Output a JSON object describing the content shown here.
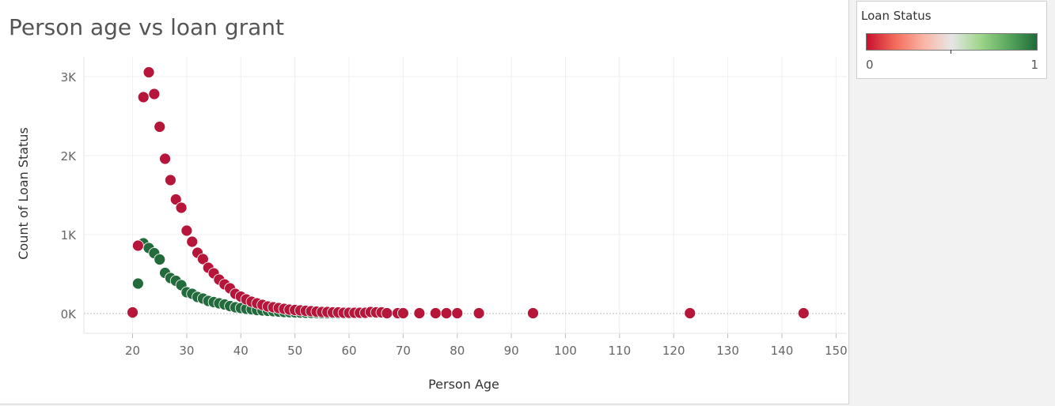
{
  "colors": {
    "denied": "#b5163a",
    "granted": "#236b3c",
    "gridline": "#efefef",
    "zero_line": "#bbbbbb"
  },
  "legend": {
    "title": "Loan Status",
    "min_label": "0",
    "max_label": "1",
    "gradient": [
      "#c8102e",
      "#f26b5b",
      "#fbb4a4",
      "#e6e6e6",
      "#9ed68a",
      "#5aa85f",
      "#1f6b3a"
    ]
  },
  "chart_data": {
    "type": "scatter",
    "title": "Person age vs loan grant",
    "xlabel": "Person Age",
    "ylabel": "Count of Loan Status",
    "xlim": [
      11,
      152
    ],
    "ylim": [
      -250,
      3250
    ],
    "x_ticks": [
      20,
      30,
      40,
      50,
      60,
      70,
      80,
      90,
      100,
      110,
      120,
      130,
      140,
      150
    ],
    "y_ticks": [
      {
        "value": 0,
        "label": "0K"
      },
      {
        "value": 1000,
        "label": "1K"
      },
      {
        "value": 2000,
        "label": "2K"
      },
      {
        "value": 3000,
        "label": "3K"
      }
    ],
    "grid": true,
    "legend_position": "top-right",
    "series": [
      {
        "status": 0,
        "color": "#b5163a",
        "x": [
          20,
          21,
          22,
          23,
          24,
          25,
          26,
          27,
          28,
          29,
          30,
          31,
          32,
          33,
          34,
          35,
          36,
          37,
          38,
          39,
          40,
          41,
          42,
          43,
          44,
          45,
          46,
          47,
          48,
          49,
          50,
          51,
          52,
          53,
          54,
          55,
          56,
          57,
          58,
          59,
          60,
          61,
          62,
          63,
          64,
          65,
          66,
          67,
          69,
          70,
          73,
          76,
          78,
          80,
          84,
          94,
          123,
          144
        ],
        "y": [
          15,
          860,
          2740,
          3055,
          2780,
          2365,
          1960,
          1690,
          1445,
          1340,
          1050,
          910,
          770,
          690,
          580,
          510,
          430,
          370,
          320,
          250,
          215,
          180,
          150,
          130,
          110,
          90,
          80,
          70,
          60,
          50,
          45,
          40,
          35,
          30,
          25,
          20,
          20,
          15,
          15,
          10,
          10,
          10,
          10,
          10,
          20,
          15,
          15,
          5,
          5,
          5,
          5,
          5,
          5,
          5,
          5,
          5,
          5,
          5
        ]
      },
      {
        "status": 1,
        "color": "#236b3c",
        "x": [
          20,
          21,
          22,
          23,
          24,
          25,
          26,
          27,
          28,
          29,
          30,
          31,
          32,
          33,
          34,
          35,
          36,
          37,
          38,
          39,
          40,
          41,
          42,
          43,
          44,
          45,
          46,
          47,
          48,
          49,
          50,
          51,
          52,
          53,
          54,
          55,
          56,
          57,
          58,
          59,
          60
        ],
        "y": [
          5,
          380,
          890,
          830,
          765,
          685,
          515,
          450,
          415,
          360,
          270,
          250,
          210,
          190,
          160,
          145,
          130,
          115,
          95,
          80,
          70,
          60,
          55,
          45,
          40,
          35,
          30,
          25,
          20,
          18,
          15,
          12,
          10,
          9,
          8,
          6,
          5,
          4,
          3,
          2,
          2
        ]
      }
    ]
  }
}
